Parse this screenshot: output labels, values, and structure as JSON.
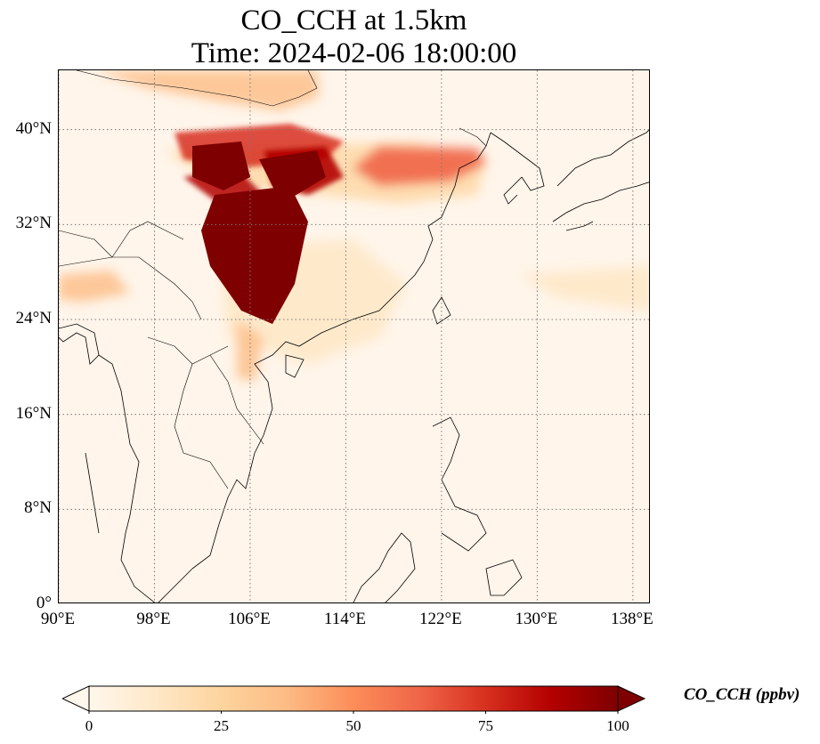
{
  "title": {
    "line1": "CO_CCH at 1.5km",
    "line2": "Time: 2024-02-06 18:00:00"
  },
  "map": {
    "projection": "PlateCarree",
    "lon_range": [
      90,
      139.5
    ],
    "lat_range": [
      0,
      45
    ],
    "gridlines": "dotted",
    "lat_ticks": [
      {
        "value": 0,
        "label": "0°"
      },
      {
        "value": 8,
        "label": "8°N"
      },
      {
        "value": 16,
        "label": "16°N"
      },
      {
        "value": 24,
        "label": "24°N"
      },
      {
        "value": 32,
        "label": "32°N"
      },
      {
        "value": 40,
        "label": "40°N"
      }
    ],
    "lon_ticks": [
      {
        "value": 90,
        "label": "90°E"
      },
      {
        "value": 98,
        "label": "98°E"
      },
      {
        "value": 106,
        "label": "106°E"
      },
      {
        "value": 114,
        "label": "114°E"
      },
      {
        "value": 122,
        "label": "122°E"
      },
      {
        "value": 130,
        "label": "130°E"
      },
      {
        "value": 138,
        "label": "138°E"
      }
    ],
    "background_color": "#fff5ea",
    "coastline_color": "#000000"
  },
  "colorbar": {
    "label": "CO_CCH (ppbv)",
    "min": 0,
    "max": 100,
    "ticks": [
      {
        "value": 0,
        "label": "0"
      },
      {
        "value": 25,
        "label": "25"
      },
      {
        "value": 50,
        "label": "50"
      },
      {
        "value": 75,
        "label": "75"
      },
      {
        "value": 100,
        "label": "100"
      }
    ],
    "extend": "both",
    "colormap": "OrRd",
    "colors": [
      "#fff7ec",
      "#fee8c8",
      "#fdd49e",
      "#fdbb84",
      "#fc8d59",
      "#ef6548",
      "#d7301f",
      "#b30000",
      "#7f0000"
    ]
  }
}
